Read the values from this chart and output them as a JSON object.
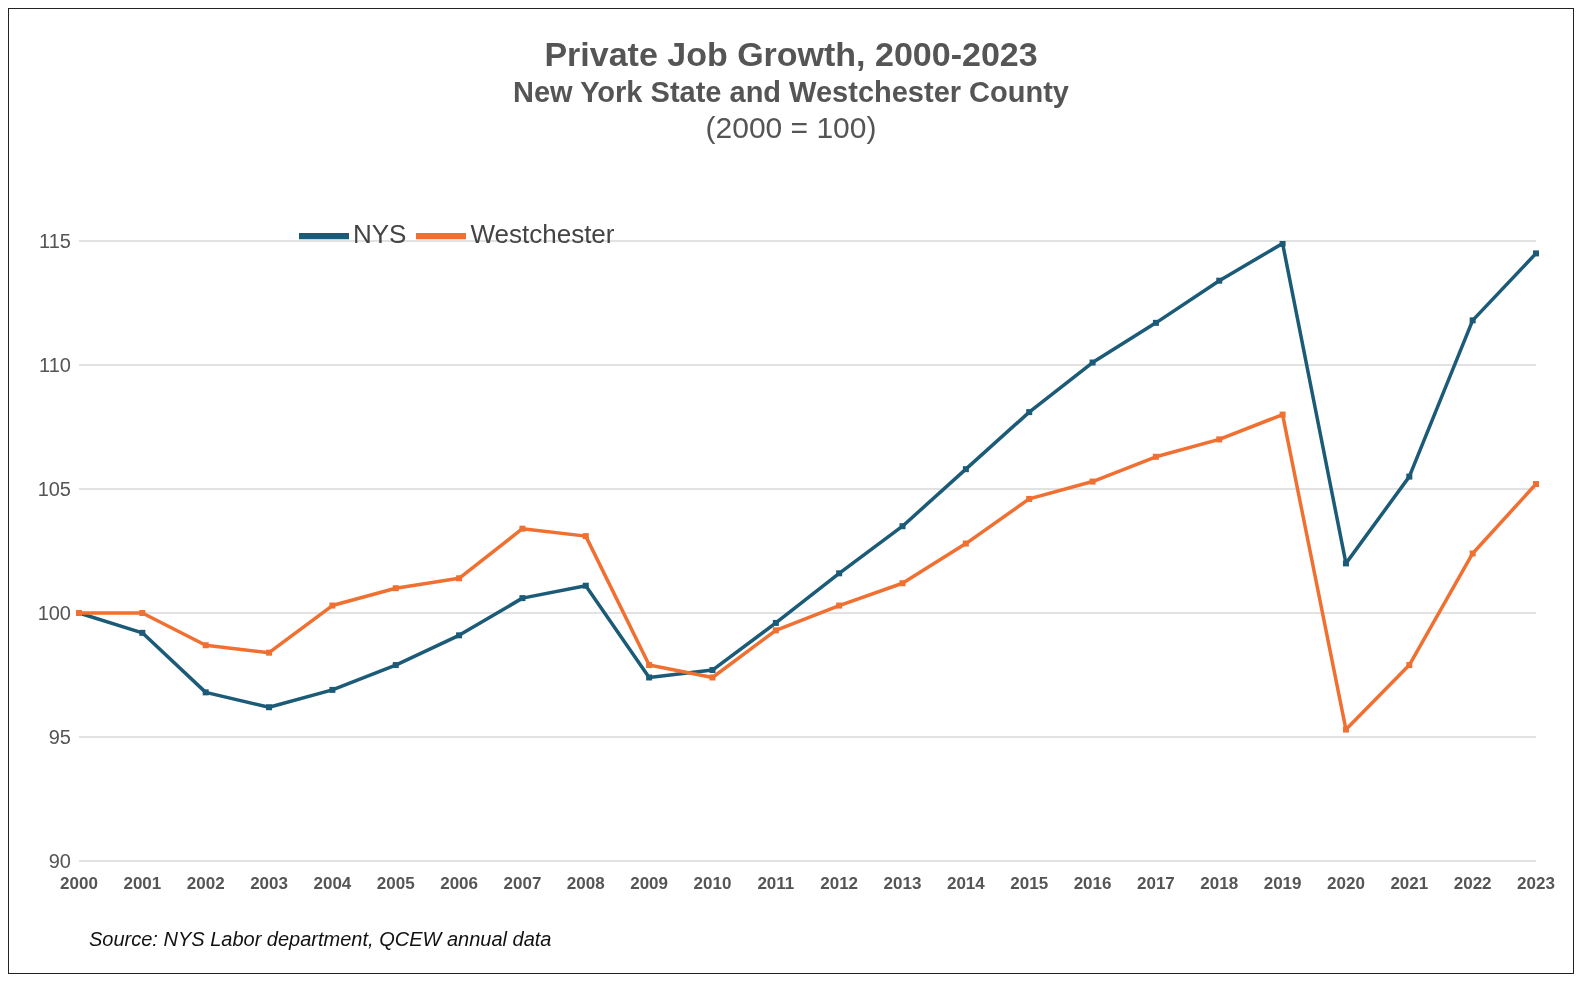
{
  "chart_data": {
    "type": "line",
    "title": "Private Job Growth, 2000-2023",
    "subtitle": "New York State and Westchester County\n(2000 = 100)",
    "categories": [
      "2000",
      "2001",
      "2002",
      "2003",
      "2004",
      "2005",
      "2006",
      "2007",
      "2008",
      "2009",
      "2010",
      "2011",
      "2012",
      "2013",
      "2014",
      "2015",
      "2016",
      "2017",
      "2018",
      "2019",
      "2020",
      "2021",
      "2022",
      "2023"
    ],
    "series": [
      {
        "name": "NYS",
        "color": "#1b5b78",
        "values": [
          100,
          99.2,
          96.8,
          96.2,
          96.9,
          97.9,
          99.1,
          100.6,
          101.1,
          97.4,
          97.7,
          99.6,
          101.6,
          103.5,
          105.8,
          108.1,
          110.1,
          111.7,
          113.4,
          114.9,
          102.0,
          105.5,
          111.8,
          114.5
        ]
      },
      {
        "name": "Westchester",
        "color": "#f07031",
        "values": [
          100,
          100,
          98.7,
          98.4,
          100.3,
          101.0,
          101.4,
          103.4,
          103.1,
          97.9,
          97.4,
          99.3,
          100.3,
          101.2,
          102.8,
          104.6,
          105.3,
          106.3,
          107.0,
          108.0,
          95.3,
          97.9,
          102.4,
          105.2
        ]
      }
    ],
    "ylim": [
      90,
      115
    ],
    "yticks": [
      90,
      95,
      100,
      105,
      110,
      115
    ],
    "grid": "y",
    "legend": "top left",
    "marker": "square",
    "line_style": "solid",
    "annotations": [
      "Source: NYS Labor department, QCEW annual data"
    ]
  }
}
